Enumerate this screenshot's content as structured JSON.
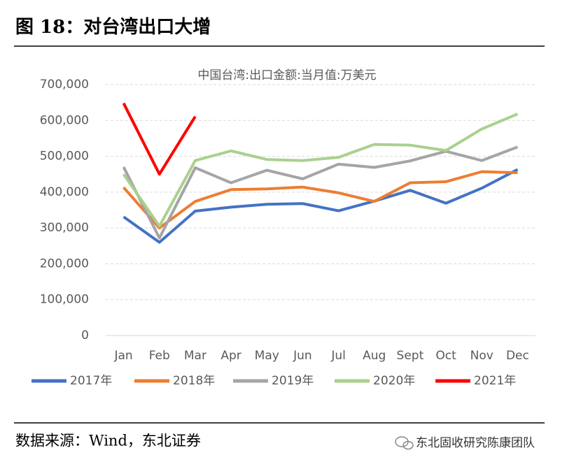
{
  "figure_title": "图 18：对台湾出口大增",
  "source": "数据来源：Wind，东北证券",
  "watermark": "东北固收研究陈康团队",
  "chart_data": {
    "type": "line",
    "title": "中国台湾:出口金额:当月值:万美元",
    "categories": [
      "Jan",
      "Feb",
      "Mar",
      "Apr",
      "May",
      "Jun",
      "Jul",
      "Aug",
      "Sept",
      "Oct",
      "Nov",
      "Dec"
    ],
    "series": [
      {
        "name": "2017年",
        "color": "#4472c4",
        "values": [
          331000,
          260000,
          347000,
          358000,
          366000,
          368000,
          348000,
          375000,
          405000,
          369000,
          411000,
          463000
        ]
      },
      {
        "name": "2018年",
        "color": "#ed7d31",
        "values": [
          413000,
          300000,
          374000,
          407000,
          409000,
          414000,
          398000,
          374000,
          426000,
          429000,
          457000,
          454000
        ]
      },
      {
        "name": "2019年",
        "color": "#a5a5a5",
        "values": [
          470000,
          272000,
          468000,
          426000,
          461000,
          437000,
          478000,
          469000,
          487000,
          514000,
          488000,
          526000
        ]
      },
      {
        "name": "2020年",
        "color": "#a9d18e",
        "values": [
          450000,
          305000,
          488000,
          515000,
          491000,
          488000,
          497000,
          533000,
          531000,
          516000,
          576000,
          618000
        ]
      },
      {
        "name": "2021年",
        "color": "#ff0000",
        "values": [
          648000,
          450000,
          611000,
          null,
          null,
          null,
          null,
          null,
          null,
          null,
          null,
          null
        ]
      }
    ],
    "ylim": [
      0,
      700000
    ],
    "yticks": [
      0,
      {
        "value": 100000,
        "label": "100,000"
      },
      {
        "value": 200000,
        "label": "200,000"
      },
      {
        "value": 300000,
        "label": "300,000"
      },
      {
        "value": 400000,
        "label": "400,000"
      },
      {
        "value": 500000,
        "label": "500,000"
      },
      {
        "value": 600000,
        "label": "600,000"
      },
      {
        "value": 700000,
        "label": "700,000"
      }
    ],
    "grid": true,
    "legend": "bottom"
  }
}
